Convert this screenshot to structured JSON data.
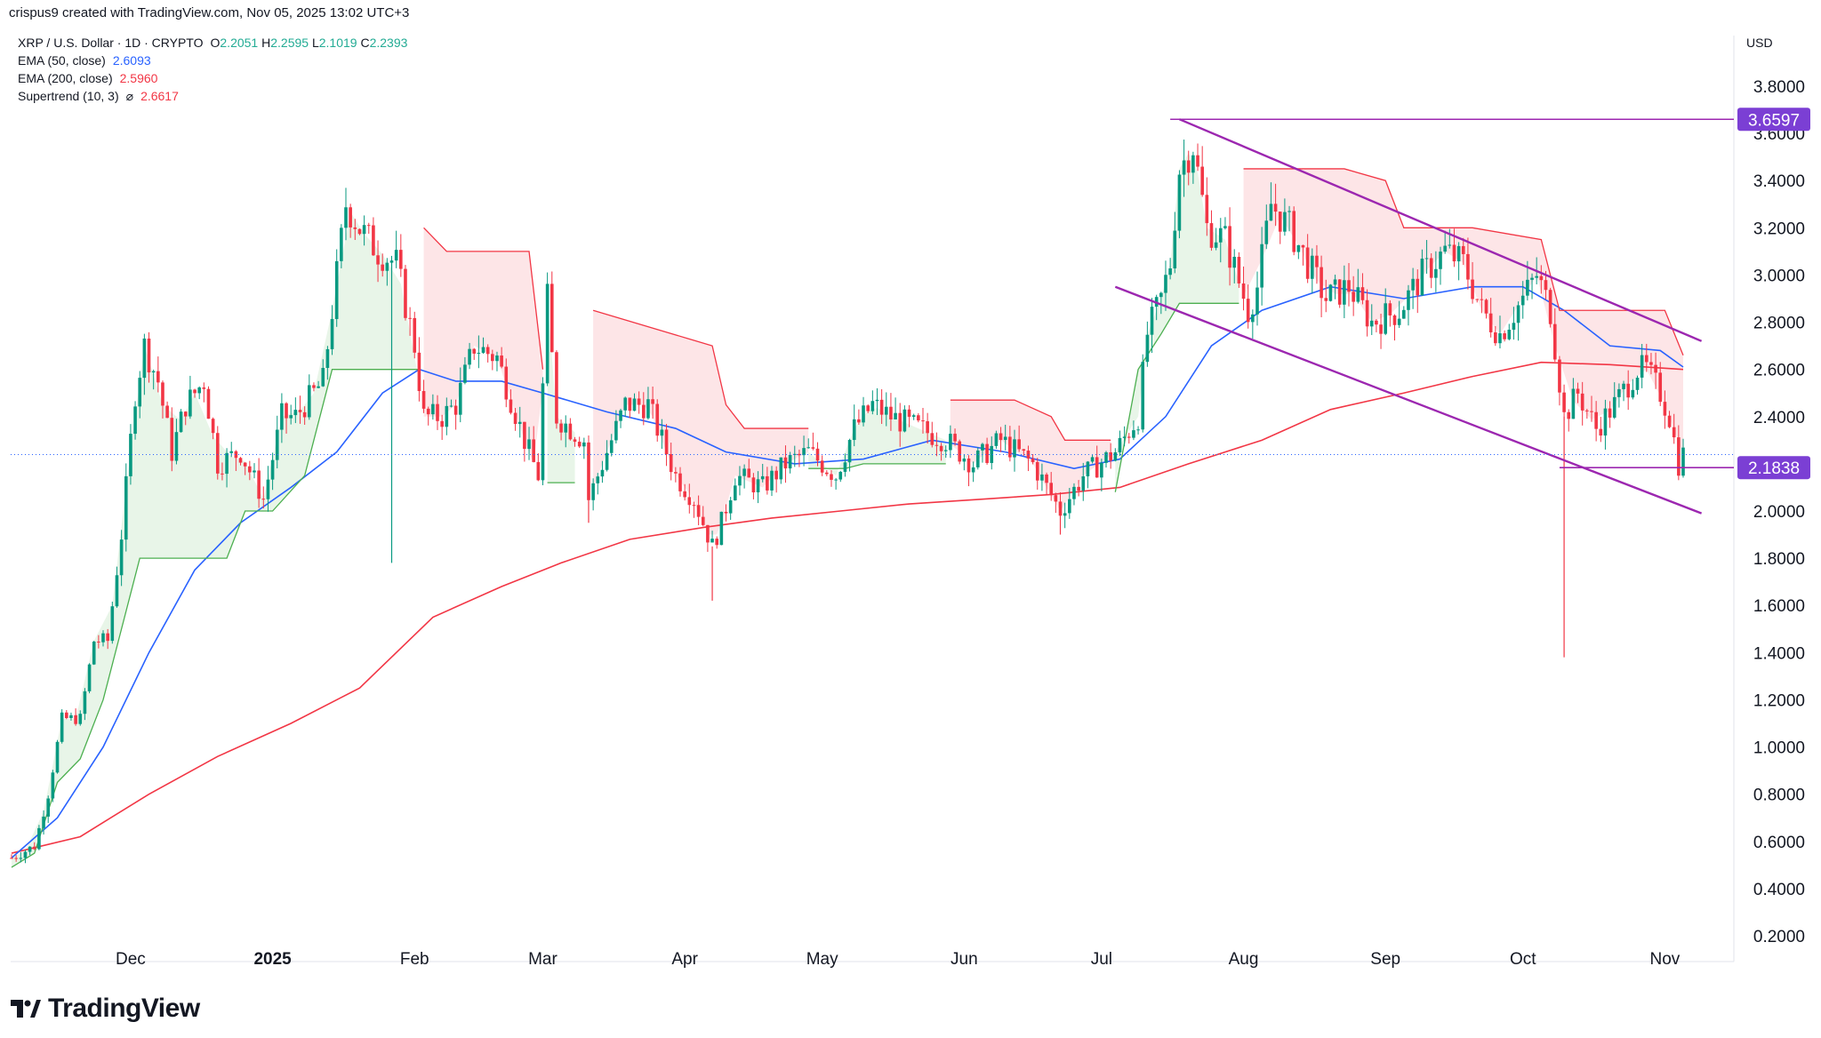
{
  "header": {
    "created_by": "crispus9 created with TradingView.com, Nov 05, 2025 13:02 UTC+3",
    "symbol": "XRP / U.S. Dollar · 1D · CRYPTO",
    "ohlc": {
      "o_label": "O",
      "o": "2.2051",
      "h_label": "H",
      "h": "2.2595",
      "l_label": "L",
      "l": "2.1019",
      "c_label": "C",
      "c": "2.2393"
    },
    "indicators": [
      {
        "label": "EMA (50, close)",
        "value": "2.6093",
        "color": "#2962ff"
      },
      {
        "label": "EMA (200, close)",
        "value": "2.5960",
        "color": "#f23645"
      },
      {
        "label": "Supertrend (10, 3)",
        "value": "2.6617",
        "color": "#f23645"
      }
    ],
    "supertrend_symbol": "⌀"
  },
  "currency": "USD",
  "brand": "TradingView",
  "colors": {
    "up": "#089981",
    "down": "#f23645",
    "ema50": "#2962ff",
    "ema200": "#f23645",
    "channel": "#9c27b0",
    "badge": "#7b3fd4",
    "st_up": "#4caf50",
    "st_down": "#f23645"
  },
  "chart_data": {
    "type": "candlestick",
    "symbol": "XRP / U.S. Dollar",
    "interval": "1D",
    "y_ticks": [
      "3.8000",
      "3.6000",
      "3.4000",
      "3.2000",
      "3.0000",
      "2.8000",
      "2.6000",
      "2.4000",
      "2.2000",
      "2.0000",
      "1.8000",
      "1.6000",
      "1.4000",
      "1.2000",
      "1.0000",
      "0.8000",
      "0.6000",
      "0.4000",
      "0.2000"
    ],
    "ylim": [
      0.2,
      3.85
    ],
    "x_labels": [
      "Dec",
      "2025",
      "Feb",
      "Mar",
      "Apr",
      "May",
      "Jun",
      "Jul",
      "Aug",
      "Sep",
      "Oct",
      "Nov"
    ],
    "last_price_label": "2.1838",
    "high_line_label": "3.6597",
    "high_line_value": 3.6597,
    "last_line_value": 2.1838,
    "price_path": [
      [
        "2024-11-05",
        0.53
      ],
      [
        "2024-11-10",
        0.58
      ],
      [
        "2024-11-13",
        0.8
      ],
      [
        "2024-11-16",
        1.12
      ],
      [
        "2024-11-20",
        1.12
      ],
      [
        "2024-11-23",
        1.45
      ],
      [
        "2024-11-26",
        1.45
      ],
      [
        "2024-11-29",
        1.9
      ],
      [
        "2024-12-02",
        2.5
      ],
      [
        "2024-12-04",
        2.7
      ],
      [
        "2024-12-07",
        2.55
      ],
      [
        "2024-12-10",
        2.25
      ],
      [
        "2024-12-13",
        2.45
      ],
      [
        "2024-12-17",
        2.55
      ],
      [
        "2024-12-20",
        2.2
      ],
      [
        "2024-12-25",
        2.25
      ],
      [
        "2024-12-30",
        2.05
      ],
      [
        "2025-01-03",
        2.4
      ],
      [
        "2025-01-06",
        2.4
      ],
      [
        "2025-01-10",
        2.5
      ],
      [
        "2025-01-12",
        2.55
      ],
      [
        "2025-01-15",
        3.0
      ],
      [
        "2025-01-17",
        3.3
      ],
      [
        "2025-01-20",
        3.2
      ],
      [
        "2025-01-24",
        3.1
      ],
      [
        "2025-01-28",
        3.05
      ],
      [
        "2025-02-01",
        2.7
      ],
      [
        "2025-02-03",
        2.4
      ],
      [
        "2025-02-07",
        2.4
      ],
      [
        "2025-02-10",
        2.45
      ],
      [
        "2025-02-14",
        2.7
      ],
      [
        "2025-02-19",
        2.65
      ],
      [
        "2025-02-25",
        2.3
      ],
      [
        "2025-02-28",
        2.15
      ],
      [
        "2025-03-02",
        2.9
      ],
      [
        "2025-03-04",
        2.4
      ],
      [
        "2025-03-10",
        2.3
      ],
      [
        "2025-03-11",
        2.05
      ],
      [
        "2025-03-16",
        2.3
      ],
      [
        "2025-03-19",
        2.45
      ],
      [
        "2025-03-24",
        2.45
      ],
      [
        "2025-03-30",
        2.15
      ],
      [
        "2025-04-03",
        2.05
      ],
      [
        "2025-04-07",
        1.85
      ],
      [
        "2025-04-09",
        1.95
      ],
      [
        "2025-04-12",
        2.15
      ],
      [
        "2025-04-18",
        2.1
      ],
      [
        "2025-04-23",
        2.2
      ],
      [
        "2025-04-28",
        2.25
      ],
      [
        "2025-05-04",
        2.15
      ],
      [
        "2025-05-08",
        2.35
      ],
      [
        "2025-05-12",
        2.45
      ],
      [
        "2025-05-16",
        2.4
      ],
      [
        "2025-05-22",
        2.35
      ],
      [
        "2025-05-28",
        2.3
      ],
      [
        "2025-06-03",
        2.2
      ],
      [
        "2025-06-09",
        2.3
      ],
      [
        "2025-06-16",
        2.2
      ],
      [
        "2025-06-22",
        2.0
      ],
      [
        "2025-06-27",
        2.15
      ],
      [
        "2025-07-04",
        2.25
      ],
      [
        "2025-07-09",
        2.4
      ],
      [
        "2025-07-11",
        2.75
      ],
      [
        "2025-07-14",
        2.9
      ],
      [
        "2025-07-16",
        3.05
      ],
      [
        "2025-07-18",
        3.45
      ],
      [
        "2025-07-21",
        3.55
      ],
      [
        "2025-07-24",
        3.2
      ],
      [
        "2025-07-28",
        3.15
      ],
      [
        "2025-08-02",
        2.85
      ],
      [
        "2025-08-04",
        2.95
      ],
      [
        "2025-08-07",
        3.3
      ],
      [
        "2025-08-11",
        3.2
      ],
      [
        "2025-08-15",
        3.05
      ],
      [
        "2025-08-19",
        2.9
      ],
      [
        "2025-08-24",
        2.95
      ],
      [
        "2025-08-29",
        2.8
      ],
      [
        "2025-09-04",
        2.85
      ],
      [
        "2025-09-09",
        3.0
      ],
      [
        "2025-09-14",
        3.1
      ],
      [
        "2025-09-18",
        3.05
      ],
      [
        "2025-09-22",
        2.85
      ],
      [
        "2025-09-26",
        2.75
      ],
      [
        "2025-10-01",
        2.9
      ],
      [
        "2025-10-04",
        3.0
      ],
      [
        "2025-10-07",
        2.85
      ],
      [
        "2025-10-10",
        2.4
      ],
      [
        "2025-10-13",
        2.5
      ],
      [
        "2025-10-17",
        2.35
      ],
      [
        "2025-10-21",
        2.45
      ],
      [
        "2025-10-26",
        2.6
      ],
      [
        "2025-10-28",
        2.6
      ],
      [
        "2025-10-31",
        2.5
      ],
      [
        "2025-11-02",
        2.4
      ],
      [
        "2025-11-04",
        2.2
      ],
      [
        "2025-11-05",
        2.24
      ]
    ],
    "spike_lows": [
      [
        "2025-01-27",
        1.78
      ],
      [
        "2025-04-07",
        1.62
      ],
      [
        "2025-10-10",
        1.38
      ],
      [
        "2025-06-22",
        1.9
      ],
      [
        "2025-03-11",
        1.95
      ]
    ],
    "ema50_path": [
      [
        "2024-11-05",
        0.53
      ],
      [
        "2024-11-15",
        0.7
      ],
      [
        "2024-11-25",
        1.0
      ],
      [
        "2024-12-05",
        1.4
      ],
      [
        "2024-12-15",
        1.75
      ],
      [
        "2024-12-25",
        1.95
      ],
      [
        "2025-01-05",
        2.1
      ],
      [
        "2025-01-15",
        2.25
      ],
      [
        "2025-01-25",
        2.5
      ],
      [
        "2025-02-02",
        2.6
      ],
      [
        "2025-02-10",
        2.55
      ],
      [
        "2025-02-20",
        2.55
      ],
      [
        "2025-03-01",
        2.5
      ],
      [
        "2025-03-15",
        2.42
      ],
      [
        "2025-03-30",
        2.35
      ],
      [
        "2025-04-10",
        2.25
      ],
      [
        "2025-04-25",
        2.2
      ],
      [
        "2025-05-10",
        2.22
      ],
      [
        "2025-05-25",
        2.3
      ],
      [
        "2025-06-10",
        2.25
      ],
      [
        "2025-06-25",
        2.18
      ],
      [
        "2025-07-05",
        2.22
      ],
      [
        "2025-07-15",
        2.4
      ],
      [
        "2025-07-25",
        2.7
      ],
      [
        "2025-08-05",
        2.85
      ],
      [
        "2025-08-20",
        2.95
      ],
      [
        "2025-09-05",
        2.9
      ],
      [
        "2025-09-20",
        2.95
      ],
      [
        "2025-10-01",
        2.95
      ],
      [
        "2025-10-10",
        2.85
      ],
      [
        "2025-10-20",
        2.7
      ],
      [
        "2025-10-31",
        2.68
      ],
      [
        "2025-11-05",
        2.61
      ]
    ],
    "ema200_path": [
      [
        "2024-11-05",
        0.55
      ],
      [
        "2024-11-20",
        0.62
      ],
      [
        "2024-12-05",
        0.8
      ],
      [
        "2024-12-20",
        0.96
      ],
      [
        "2025-01-05",
        1.1
      ],
      [
        "2025-01-20",
        1.25
      ],
      [
        "2025-02-05",
        1.55
      ],
      [
        "2025-02-20",
        1.68
      ],
      [
        "2025-03-05",
        1.78
      ],
      [
        "2025-03-20",
        1.88
      ],
      [
        "2025-04-05",
        1.93
      ],
      [
        "2025-04-20",
        1.97
      ],
      [
        "2025-05-05",
        2.0
      ],
      [
        "2025-05-20",
        2.03
      ],
      [
        "2025-06-05",
        2.05
      ],
      [
        "2025-06-20",
        2.07
      ],
      [
        "2025-07-05",
        2.1
      ],
      [
        "2025-07-20",
        2.2
      ],
      [
        "2025-08-05",
        2.3
      ],
      [
        "2025-08-20",
        2.43
      ],
      [
        "2025-09-05",
        2.5
      ],
      [
        "2025-09-20",
        2.57
      ],
      [
        "2025-10-05",
        2.63
      ],
      [
        "2025-10-20",
        2.62
      ],
      [
        "2025-11-05",
        2.6
      ]
    ],
    "supertrend_up": [
      [
        [
          "2024-11-05",
          0.49
        ],
        [
          "2024-11-10",
          0.55
        ],
        [
          "2024-11-15",
          0.85
        ],
        [
          "2024-11-20",
          0.95
        ],
        [
          "2024-11-25",
          1.2
        ],
        [
          "2024-12-03",
          1.8
        ],
        [
          "2024-12-22",
          1.8
        ],
        [
          "2024-12-26",
          2.0
        ],
        [
          "2025-01-01",
          2.0
        ],
        [
          "2025-01-08",
          2.15
        ],
        [
          "2025-01-14",
          2.6
        ],
        [
          "2025-01-20",
          2.6
        ],
        [
          "2025-02-02",
          2.6
        ]
      ],
      [
        [
          "2025-03-02",
          2.12
        ],
        [
          "2025-03-08",
          2.12
        ]
      ],
      [
        [
          "2025-04-28",
          2.18
        ],
        [
          "2025-05-06",
          2.18
        ],
        [
          "2025-05-10",
          2.2
        ],
        [
          "2025-05-28",
          2.2
        ]
      ],
      [
        [
          "2025-07-04",
          2.08
        ],
        [
          "2025-07-09",
          2.6
        ],
        [
          "2025-07-14",
          2.75
        ],
        [
          "2025-07-18",
          2.88
        ],
        [
          "2025-07-31",
          2.88
        ]
      ]
    ],
    "supertrend_down": [
      [
        [
          "2025-02-03",
          3.2
        ],
        [
          "2025-02-08",
          3.1
        ],
        [
          "2025-02-26",
          3.1
        ],
        [
          "2025-03-01",
          2.6
        ]
      ],
      [
        [
          "2025-03-12",
          2.85
        ],
        [
          "2025-04-07",
          2.7
        ],
        [
          "2025-04-10",
          2.45
        ],
        [
          "2025-04-14",
          2.35
        ],
        [
          "2025-04-28",
          2.35
        ]
      ],
      [
        [
          "2025-05-29",
          2.47
        ],
        [
          "2025-06-12",
          2.47
        ],
        [
          "2025-06-20",
          2.4
        ],
        [
          "2025-06-23",
          2.3
        ],
        [
          "2025-07-03",
          2.3
        ]
      ],
      [
        [
          "2025-08-01",
          3.45
        ],
        [
          "2025-08-23",
          3.45
        ],
        [
          "2025-09-01",
          3.4
        ],
        [
          "2025-09-05",
          3.2
        ],
        [
          "2025-09-20",
          3.2
        ],
        [
          "2025-10-05",
          3.15
        ],
        [
          "2025-10-09",
          2.85
        ],
        [
          "2025-10-20",
          2.85
        ],
        [
          "2025-11-01",
          2.85
        ],
        [
          "2025-11-05",
          2.66
        ]
      ]
    ],
    "channel_upper": [
      [
        "2025-07-18",
        3.66
      ],
      [
        "2025-11-09",
        2.72
      ]
    ],
    "channel_lower": [
      [
        "2025-07-04",
        2.95
      ],
      [
        "2025-11-09",
        1.99
      ]
    ],
    "high_line_start": "2025-07-16",
    "last_line_start": "2025-10-09"
  }
}
